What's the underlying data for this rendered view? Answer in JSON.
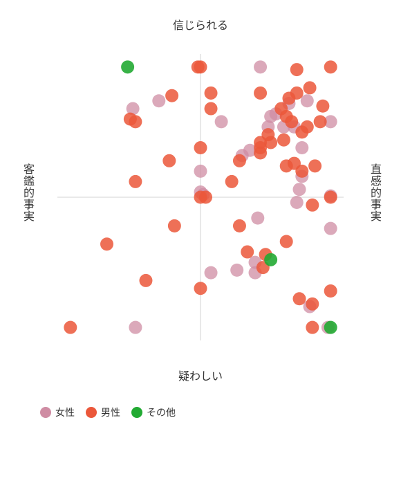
{
  "chart_data": {
    "type": "scatter",
    "top_label": "信じられる",
    "bottom_label": "疑わしい",
    "left_label": "客鑑的事実",
    "right_label": "直感的事実",
    "xlim": [
      -5.5,
      5.5
    ],
    "ylim": [
      -5.5,
      5.5
    ],
    "series": [
      {
        "name": "女性",
        "color": "#cf8ca3",
        "x": [
          2.3,
          -2.6,
          -1.6,
          0.8,
          5,
          2.7,
          2.9,
          2.6,
          3.4,
          4.1,
          3.9,
          1.9,
          1.6,
          0,
          0,
          0.1,
          3.9,
          3.8,
          3.7,
          5,
          5,
          2.2,
          2.1,
          2.1,
          1.4,
          0.4,
          4.2,
          -2.5,
          4.9,
          3.2,
          3.6
        ],
        "y": [
          5,
          3.4,
          3.7,
          2.9,
          2.9,
          3.1,
          3.2,
          2.7,
          3.6,
          3.7,
          1.9,
          1.8,
          1.6,
          1,
          0.2,
          0.1,
          0.8,
          0.3,
          -0.2,
          0.05,
          -1.2,
          -0.8,
          -2.5,
          -2.9,
          -2.8,
          -2.9,
          -4.2,
          -5,
          -5,
          2.7,
          2.7
        ]
      },
      {
        "name": "男性",
        "color": "#eb573a",
        "x": [
          -5,
          -3.6,
          -2.1,
          -1,
          -2.5,
          -1.2,
          -2.7,
          -2.5,
          -1.1,
          -0.1,
          0,
          0.4,
          0.4,
          0,
          1.2,
          0,
          0.2,
          1.5,
          1.5,
          2.3,
          2.3,
          2.3,
          2.3,
          2.6,
          2.7,
          3.2,
          3.7,
          5,
          3.7,
          4.2,
          4.7,
          3.4,
          3.1,
          3.3,
          3.5,
          3.9,
          4.1,
          4.6,
          3.3,
          3.6,
          3.9,
          4.4,
          4.3,
          5,
          3.3,
          1.8,
          2.5,
          2.4,
          0,
          3.8,
          4.3,
          5,
          4.3
        ],
        "y": [
          -5,
          -1.8,
          -3.2,
          -1.1,
          0.6,
          1.4,
          3,
          2.9,
          3.9,
          5,
          5,
          4,
          3.4,
          1.9,
          0.6,
          0,
          0,
          -1.1,
          1.4,
          4,
          2.1,
          1.7,
          1.9,
          2.4,
          2.1,
          2.2,
          4.9,
          5,
          4,
          4.2,
          3.5,
          3.8,
          3.4,
          3.1,
          2.9,
          2.5,
          2.7,
          2.9,
          1.2,
          1.3,
          1,
          1.2,
          -0.3,
          0,
          -1.7,
          -2.1,
          -2.2,
          -2.7,
          -3.5,
          -3.9,
          -4.1,
          -3.6,
          -5
        ]
      },
      {
        "name": "その他",
        "color": "#22aa33",
        "x": [
          -2.8,
          2.7,
          5
        ],
        "y": [
          5,
          -2.4,
          -5
        ]
      }
    ]
  }
}
